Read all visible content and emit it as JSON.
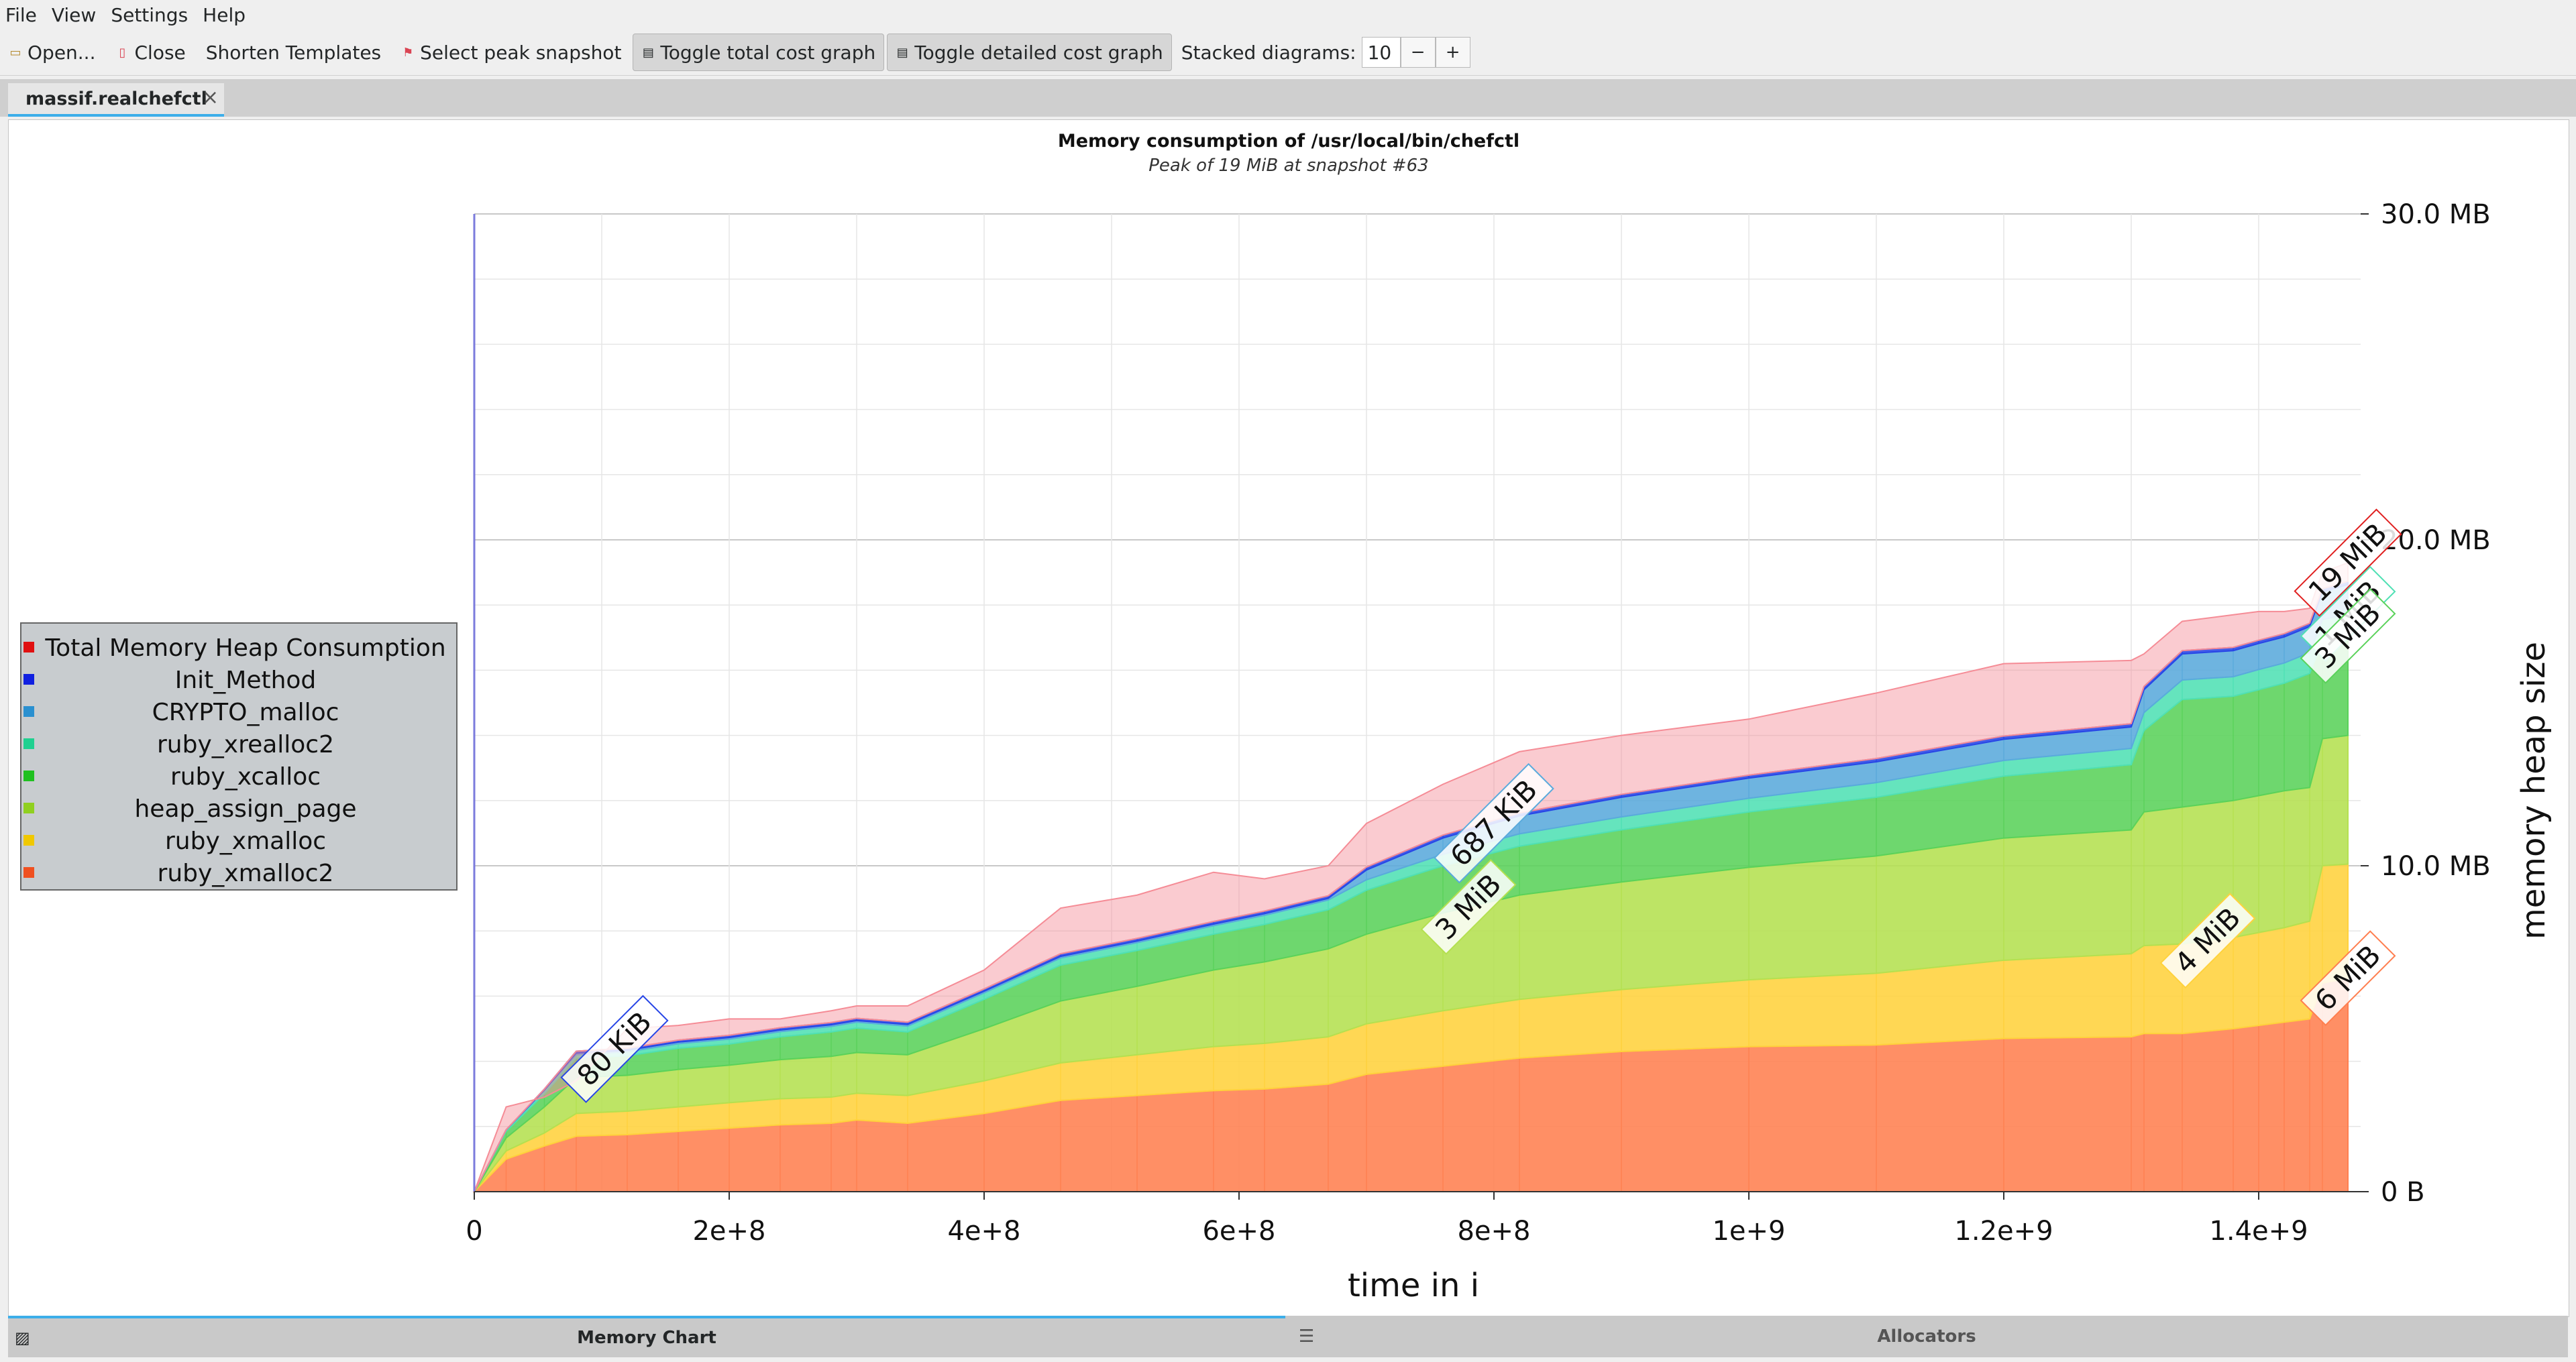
{
  "menu": [
    "File",
    "View",
    "Settings",
    "Help"
  ],
  "toolbar": {
    "open": "Open...",
    "close": "Close",
    "shorten": "Shorten Templates",
    "peak": "Select peak snapshot",
    "toggle_total": "Toggle total cost graph",
    "toggle_detailed": "Toggle detailed cost graph",
    "stacked_label": "Stacked diagrams:",
    "stacked_value": "10",
    "minus": "−",
    "plus": "+"
  },
  "tab": {
    "label": "massif.realchefctl",
    "close": "×"
  },
  "bottom_tabs": {
    "memory_chart": "Memory Chart",
    "allocators": "Allocators"
  },
  "colors": {
    "ruby_xmalloc2": "#ff7f50",
    "ruby_xmalloc": "#ffd23c",
    "heap_assign_page": "#b4e050",
    "ruby_xcalloc": "#5ad25a",
    "ruby_xrealloc2": "#50e0b4",
    "CRYPTO_malloc": "#5aaadc",
    "Init_Method": "#2846e6",
    "total": "#f58c96"
  },
  "chart_data": {
    "type": "area",
    "title": "Memory consumption of /usr/local/bin/chefctl",
    "subtitle": "Peak of 19 MiB at snapshot #63",
    "xlabel": "time in i",
    "ylabel": "memory heap size",
    "xlim": [
      0,
      1480000000
    ],
    "ylim": [
      0,
      30
    ],
    "x_ticks": [
      0,
      200000000,
      400000000,
      600000000,
      800000000,
      1000000000,
      1200000000,
      1400000000
    ],
    "x_tick_labels": [
      "0",
      "2e+8",
      "4e+8",
      "6e+8",
      "8e+8",
      "1e+9",
      "1.2e+9",
      "1.4e+9"
    ],
    "y_ticks": [
      0,
      10,
      20,
      30
    ],
    "y_tick_labels": [
      "0 B",
      "10.0 MB",
      "20.0 MB",
      "30.0 MB"
    ],
    "grid": true,
    "legend_position": "left",
    "x": [
      0,
      25000000,
      55000000,
      80000000,
      120000000,
      160000000,
      200000000,
      240000000,
      280000000,
      300000000,
      340000000,
      400000000,
      460000000,
      520000000,
      580000000,
      620000000,
      670000000,
      700000000,
      760000000,
      820000000,
      900000000,
      1000000000,
      1100000000,
      1200000000,
      1300000000,
      1310000000,
      1340000000,
      1380000000,
      1400000000,
      1420000000,
      1440000000,
      1450000000,
      1470000000
    ],
    "series": [
      {
        "name": "ruby_xmalloc2",
        "values": [
          0,
          1.0,
          1.4,
          1.7,
          1.75,
          1.85,
          1.95,
          2.05,
          2.1,
          2.2,
          2.1,
          2.4,
          2.8,
          2.95,
          3.1,
          3.15,
          3.3,
          3.6,
          3.85,
          4.1,
          4.3,
          4.45,
          4.5,
          4.7,
          4.75,
          4.85,
          4.85,
          5.0,
          5.1,
          5.2,
          5.3,
          6.4,
          6.55
        ]
      },
      {
        "name": "ruby_xmalloc",
        "values": [
          0,
          0.25,
          0.4,
          0.7,
          0.72,
          0.75,
          0.78,
          0.8,
          0.8,
          0.82,
          0.85,
          1.0,
          1.15,
          1.25,
          1.35,
          1.4,
          1.45,
          1.55,
          1.7,
          1.8,
          1.9,
          2.05,
          2.2,
          2.4,
          2.55,
          2.7,
          2.75,
          2.8,
          2.85,
          2.9,
          3.0,
          3.6,
          3.5
        ]
      },
      {
        "name": "heap_assign_page",
        "values": [
          0,
          0.4,
          0.8,
          1.1,
          1.1,
          1.15,
          1.15,
          1.2,
          1.25,
          1.25,
          1.25,
          1.6,
          1.9,
          2.1,
          2.35,
          2.5,
          2.7,
          2.75,
          3.0,
          3.2,
          3.3,
          3.45,
          3.6,
          3.75,
          3.8,
          4.1,
          4.2,
          4.2,
          4.2,
          4.2,
          4.1,
          3.9,
          3.95
        ]
      },
      {
        "name": "ruby_xcalloc",
        "values": [
          0,
          0.2,
          0.4,
          0.6,
          0.6,
          0.65,
          0.65,
          0.7,
          0.75,
          0.75,
          0.7,
          0.9,
          1.1,
          1.1,
          1.1,
          1.15,
          1.2,
          1.35,
          1.45,
          1.5,
          1.6,
          1.7,
          1.8,
          1.9,
          2.0,
          2.5,
          3.3,
          3.2,
          3.25,
          3.3,
          3.5,
          3.0,
          3.05
        ]
      },
      {
        "name": "ruby_xrealloc2",
        "values": [
          0,
          0.05,
          0.1,
          0.1,
          0.12,
          0.14,
          0.15,
          0.16,
          0.17,
          0.18,
          0.18,
          0.2,
          0.22,
          0.24,
          0.26,
          0.28,
          0.3,
          0.32,
          0.35,
          0.38,
          0.4,
          0.42,
          0.45,
          0.48,
          0.5,
          0.55,
          0.6,
          0.6,
          0.62,
          0.62,
          0.64,
          0.65,
          0.68
        ]
      },
      {
        "name": "CRYPTO_malloc",
        "values": [
          0,
          0,
          0.02,
          0.05,
          0.05,
          0.05,
          0.05,
          0.05,
          0.05,
          0.05,
          0.05,
          0.05,
          0.05,
          0.05,
          0.05,
          0.05,
          0.05,
          0.3,
          0.5,
          0.55,
          0.6,
          0.62,
          0.64,
          0.65,
          0.66,
          0.7,
          0.8,
          0.8,
          0.8,
          0.8,
          0.8,
          0.85,
          0.9
        ]
      },
      {
        "name": "Init_Method",
        "values": [
          0,
          0,
          0.03,
          0.06,
          0.06,
          0.06,
          0.07,
          0.07,
          0.07,
          0.07,
          0.07,
          0.07,
          0.08,
          0.08,
          0.08,
          0.08,
          0.08,
          0.09,
          0.09,
          0.09,
          0.09,
          0.09,
          0.1,
          0.1,
          0.1,
          0.1,
          0.1,
          0.1,
          0.1,
          0.1,
          0.1,
          0.1,
          0.1
        ]
      }
    ],
    "total": [
      0,
      2.6,
      2.9,
      3.4,
      5.0,
      5.1,
      5.3,
      5.3,
      5.55,
      5.7,
      5.7,
      6.8,
      8.7,
      9.1,
      9.8,
      9.6,
      10.0,
      11.3,
      12.5,
      13.5,
      14.0,
      14.5,
      15.3,
      16.2,
      16.3,
      16.5,
      17.5,
      17.7,
      17.8,
      17.8,
      17.9,
      19.0,
      19.3
    ],
    "legend": [
      "Total Memory Heap Consumption",
      "Init_Method",
      "CRYPTO_malloc",
      "ruby_xrealloc2",
      "ruby_xcalloc",
      "heap_assign_page",
      "ruby_xmalloc",
      "ruby_xmalloc2"
    ],
    "annotations": [
      {
        "text": "80 KiB",
        "series": "Init_Method",
        "x": 110000000
      },
      {
        "text": "687 KiB",
        "series": "CRYPTO_malloc",
        "x": 800000000
      },
      {
        "text": "3 MiB",
        "series": "heap_assign_page",
        "x": 780000000
      },
      {
        "text": "4 MiB",
        "series": "ruby_xmalloc",
        "x": 1360000000
      },
      {
        "text": "6 MiB",
        "series": "ruby_xmalloc2",
        "x": 1470000000
      },
      {
        "text": "19 MiB",
        "series": "total",
        "x": 1470000000
      },
      {
        "text": "1 MiB",
        "series": "ruby_xrealloc2",
        "x": 1470000000
      },
      {
        "text": "3 MiB",
        "series": "ruby_xcalloc",
        "x": 1470000000
      }
    ]
  }
}
